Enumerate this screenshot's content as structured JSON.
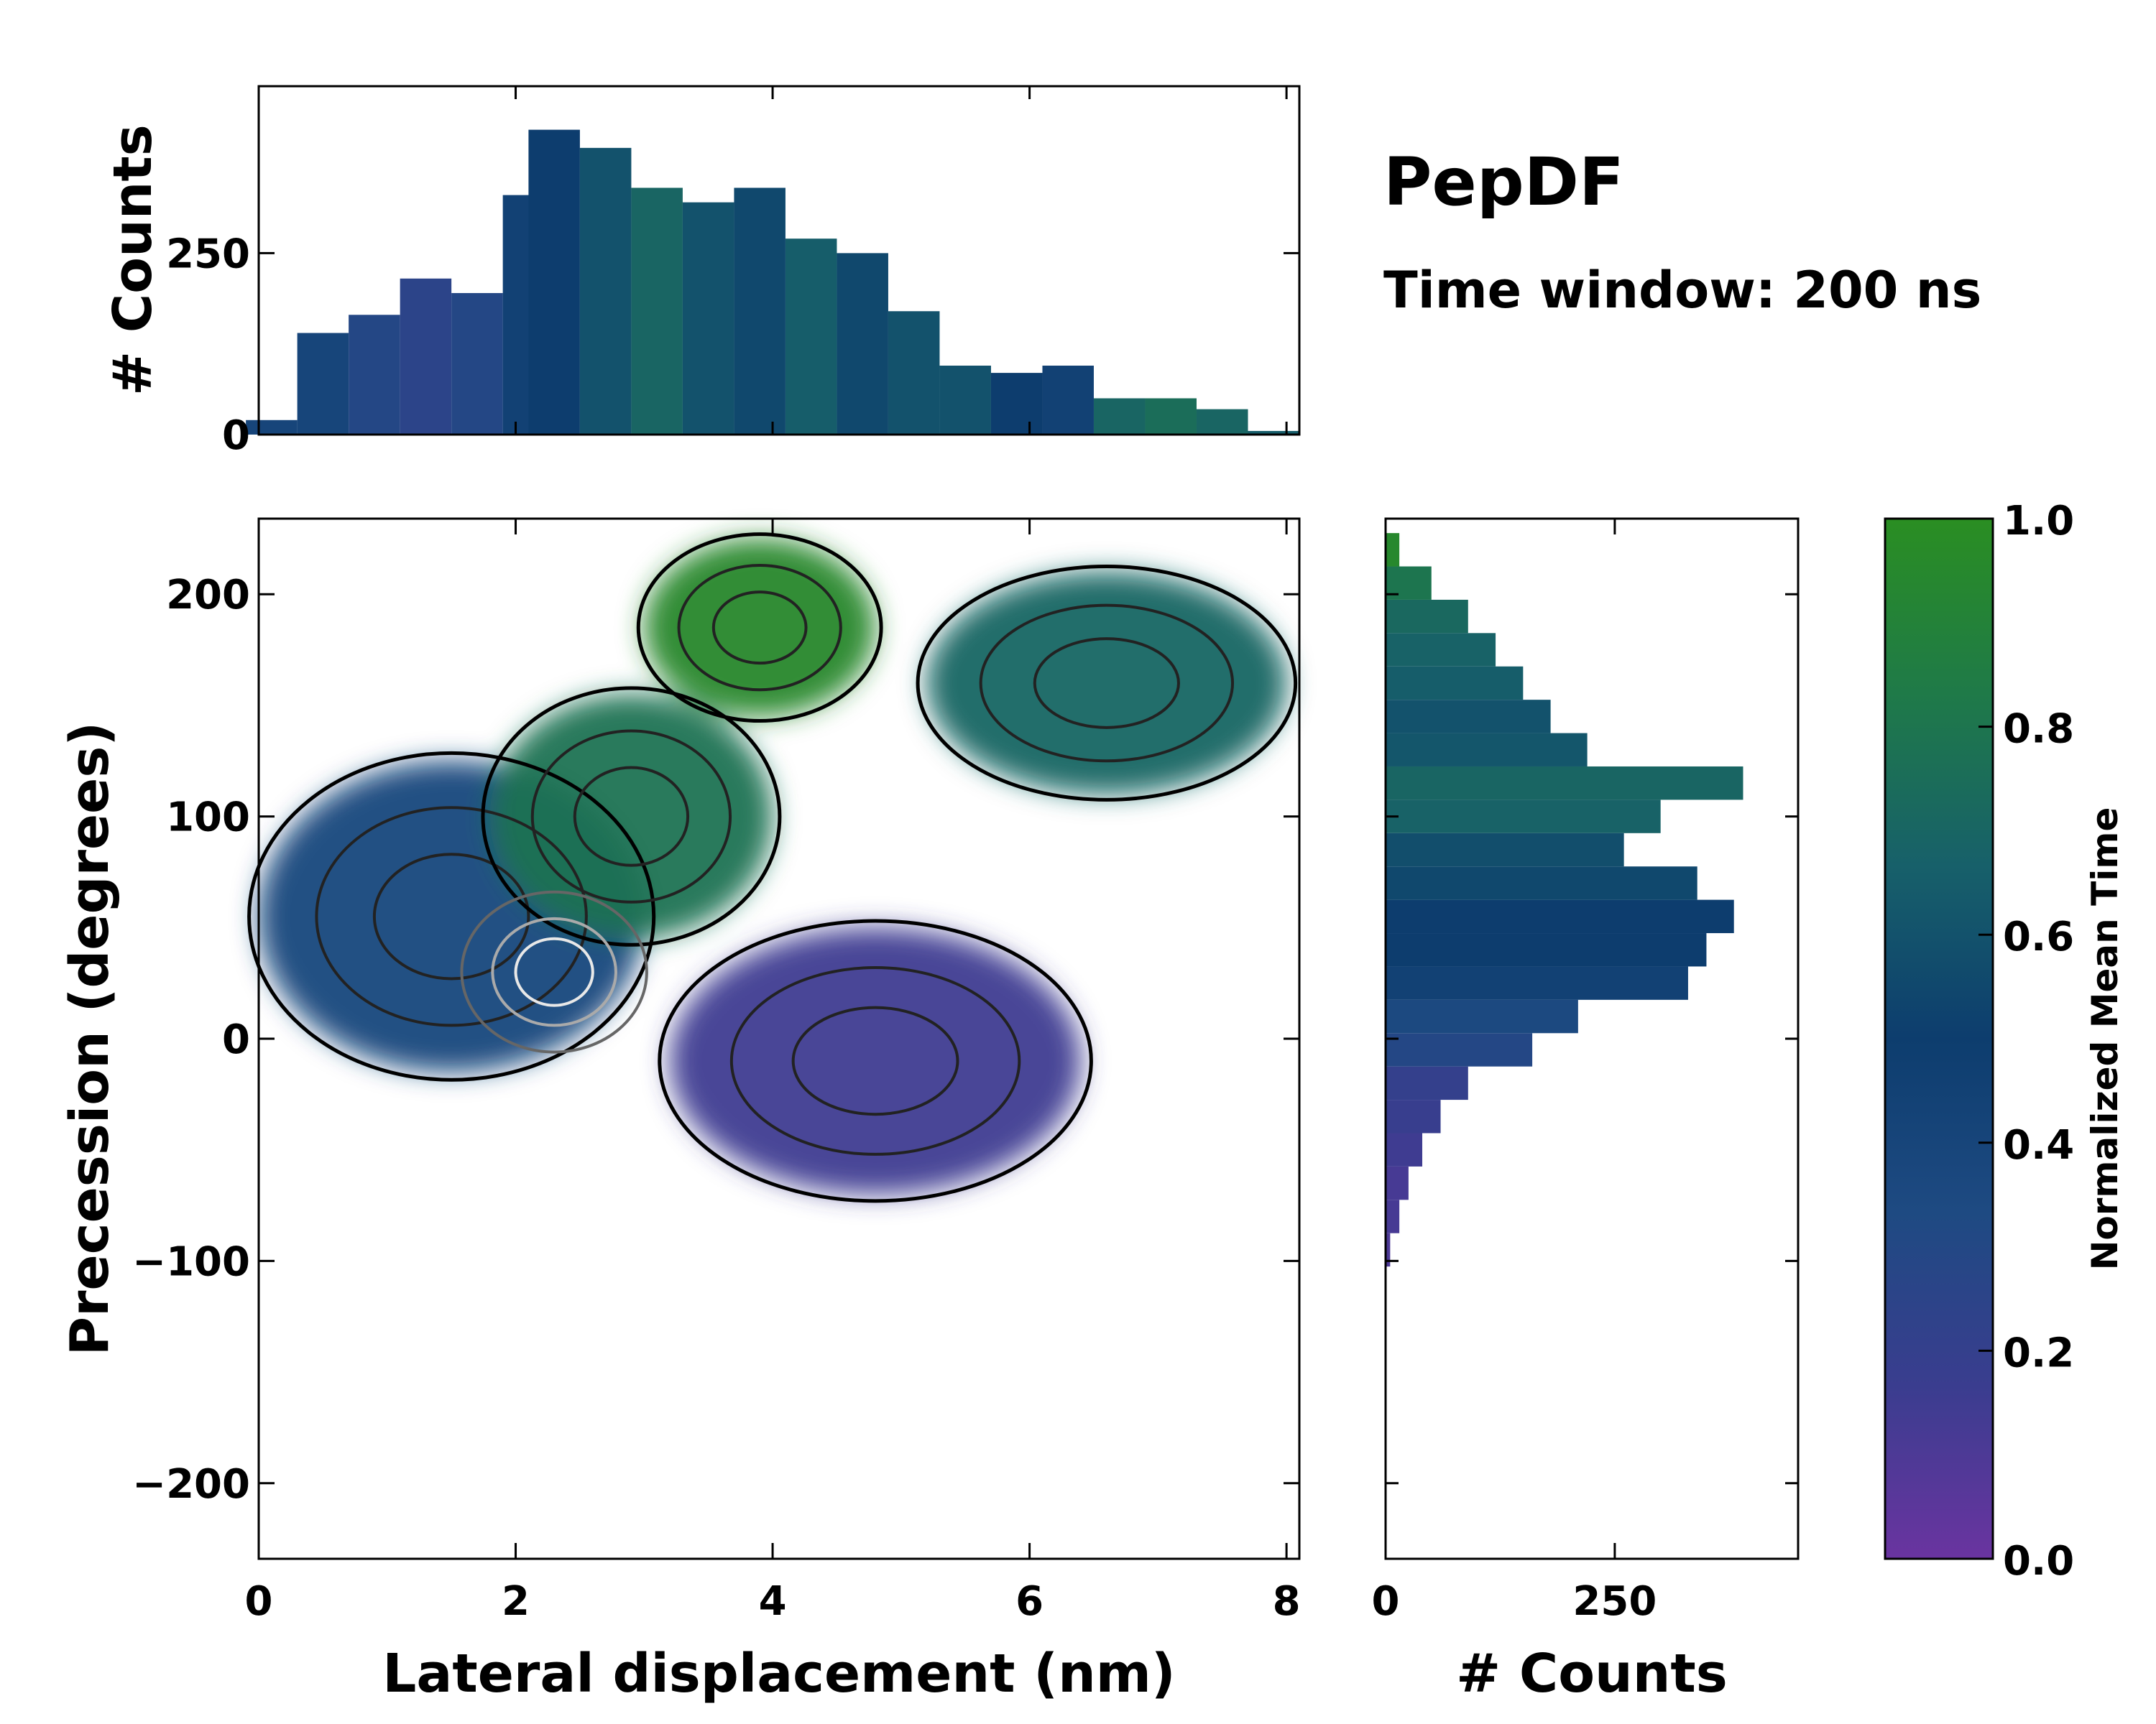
{
  "chart_data": {
    "type": "heatmap",
    "title": "PepDF",
    "subtitle": "Time window: 200 ns",
    "main": {
      "xlabel": "Lateral displacement (nm)",
      "ylabel": "Precession (degrees)",
      "xlim": [
        0,
        8.1
      ],
      "ylim": [
        -234,
        234
      ],
      "xticks": [
        0,
        2,
        4,
        6,
        8
      ],
      "yticks": [
        -200,
        -100,
        0,
        100,
        200
      ],
      "xtick_labels": [
        "0",
        "2",
        "4",
        "6",
        "8"
      ],
      "ytick_labels": [
        "−200",
        "−100",
        "0",
        "100",
        "200"
      ],
      "regions": [
        {
          "name": "upper-left cluster",
          "cx": 1.5,
          "cy": 55,
          "rx": 1.5,
          "ry": 70,
          "mean_time": 0.38
        },
        {
          "name": "central cluster",
          "cx": 2.9,
          "cy": 100,
          "rx": 1.1,
          "ry": 55,
          "mean_time": 0.78
        },
        {
          "name": "top cluster",
          "cx": 3.9,
          "cy": 185,
          "rx": 0.9,
          "ry": 40,
          "mean_time": 0.95
        },
        {
          "name": "right cluster",
          "cx": 6.6,
          "cy": 160,
          "rx": 1.4,
          "ry": 50,
          "mean_time": 0.7
        },
        {
          "name": "lower cluster",
          "cx": 4.8,
          "cy": -10,
          "rx": 1.6,
          "ry": 60,
          "mean_time": 0.15
        },
        {
          "name": "density peak",
          "cx": 2.3,
          "cy": 30,
          "rx": 0.3,
          "ry": 15,
          "mean_time": 0.4
        }
      ]
    },
    "top_hist": {
      "ylabel": "# Counts",
      "yticks": [
        0,
        250
      ],
      "ytick_labels": [
        "0",
        "250"
      ],
      "ylim": [
        0,
        480
      ],
      "x": [
        0.1,
        0.5,
        0.9,
        1.3,
        1.7,
        2.1,
        2.3,
        2.7,
        3.1,
        3.5,
        3.9,
        4.3,
        4.7,
        5.1,
        5.5,
        5.9,
        6.3,
        6.7,
        7.1,
        7.5,
        7.9
      ],
      "counts": [
        20,
        140,
        165,
        215,
        195,
        330,
        420,
        395,
        340,
        320,
        340,
        270,
        250,
        170,
        95,
        85,
        95,
        50,
        50,
        35,
        5
      ],
      "mean_time": [
        0.4,
        0.4,
        0.3,
        0.25,
        0.3,
        0.45,
        0.5,
        0.6,
        0.7,
        0.6,
        0.55,
        0.65,
        0.55,
        0.6,
        0.6,
        0.5,
        0.45,
        0.7,
        0.75,
        0.7,
        0.65
      ]
    },
    "right_hist": {
      "xlabel": "# Counts",
      "xticks": [
        0,
        250
      ],
      "xtick_labels": [
        "0",
        "250"
      ],
      "xlim": [
        0,
        450
      ],
      "y": [
        -95,
        -80,
        -65,
        -50,
        -35,
        -20,
        -5,
        10,
        25,
        40,
        55,
        70,
        85,
        100,
        115,
        130,
        145,
        160,
        175,
        190,
        205,
        220
      ],
      "counts": [
        5,
        15,
        25,
        40,
        60,
        90,
        160,
        210,
        330,
        350,
        380,
        340,
        260,
        300,
        390,
        220,
        180,
        150,
        120,
        90,
        50,
        15
      ],
      "mean_time": [
        0.1,
        0.12,
        0.12,
        0.15,
        0.18,
        0.2,
        0.3,
        0.35,
        0.45,
        0.5,
        0.5,
        0.55,
        0.58,
        0.68,
        0.7,
        0.62,
        0.6,
        0.65,
        0.68,
        0.72,
        0.8,
        0.95
      ]
    },
    "colorbar": {
      "label": "Normalized Mean Time",
      "range": [
        0,
        1
      ],
      "ticks": [
        0,
        0.2,
        0.4,
        0.6,
        0.8,
        1.0
      ],
      "tick_labels": [
        "0.0",
        "0.2",
        "0.4",
        "0.6",
        "0.8",
        "1.0"
      ],
      "colormap": [
        "#6a34a0",
        "#3a3d8f",
        "#1e4a82",
        "#0d3d6e",
        "#17606a",
        "#1f7a48",
        "#2a8e22"
      ]
    }
  }
}
